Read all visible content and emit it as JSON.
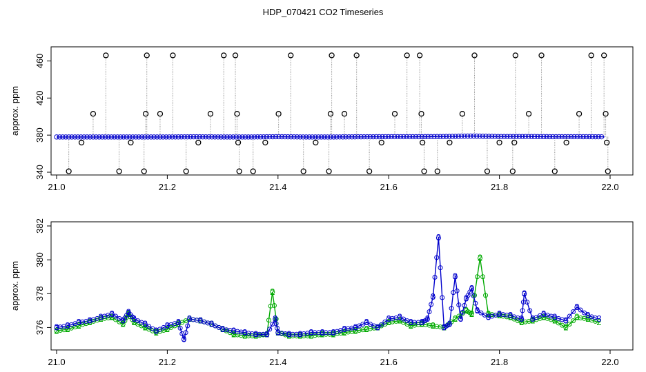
{
  "figure": {
    "title": "HDP_070421  CO2 Timeseries"
  },
  "chart_data": [
    {
      "type": "scatter",
      "ylabel": "approx. ppm",
      "xlim": [
        21.0,
        22.0
      ],
      "ylim": [
        340,
        470
      ],
      "x_ticks": [
        21.0,
        21.2,
        21.4,
        21.6,
        21.8,
        22.0
      ],
      "x_tick_labels": [
        "21.0",
        "21.2",
        "21.4",
        "21.6",
        "21.8",
        "22.0"
      ],
      "y_ticks": [
        340,
        380,
        420,
        460
      ],
      "y_tick_labels": [
        "340",
        "380",
        "420",
        "460"
      ],
      "grid": false,
      "baseline": [
        [
          21.0,
          378
        ],
        [
          21.05,
          378
        ],
        [
          21.1,
          378
        ],
        [
          21.15,
          378
        ],
        [
          21.2,
          378
        ],
        [
          21.25,
          378.2
        ],
        [
          21.3,
          378
        ],
        [
          21.35,
          378
        ],
        [
          21.4,
          378.3
        ],
        [
          21.45,
          378
        ],
        [
          21.5,
          378
        ],
        [
          21.55,
          378.2
        ],
        [
          21.6,
          378.3
        ],
        [
          21.65,
          378.3
        ],
        [
          21.7,
          378.5
        ],
        [
          21.75,
          379
        ],
        [
          21.8,
          378.5
        ],
        [
          21.85,
          378.5
        ],
        [
          21.9,
          378.3
        ],
        [
          21.95,
          378.3
        ],
        [
          21.99,
          378.2
        ]
      ],
      "spikes": [
        {
          "x": 21.022,
          "y": 341
        },
        {
          "x": 21.045,
          "y": 372
        },
        {
          "x": 21.066,
          "y": 403
        },
        {
          "x": 21.089,
          "y": 466
        },
        {
          "x": 21.113,
          "y": 341
        },
        {
          "x": 21.134,
          "y": 372
        },
        {
          "x": 21.158,
          "y": 341
        },
        {
          "x": 21.161,
          "y": 403
        },
        {
          "x": 21.163,
          "y": 466
        },
        {
          "x": 21.187,
          "y": 403
        },
        {
          "x": 21.21,
          "y": 466
        },
        {
          "x": 21.234,
          "y": 341
        },
        {
          "x": 21.256,
          "y": 372
        },
        {
          "x": 21.278,
          "y": 403
        },
        {
          "x": 21.302,
          "y": 466
        },
        {
          "x": 21.323,
          "y": 466
        },
        {
          "x": 21.326,
          "y": 403
        },
        {
          "x": 21.328,
          "y": 372
        },
        {
          "x": 21.33,
          "y": 341
        },
        {
          "x": 21.355,
          "y": 341
        },
        {
          "x": 21.377,
          "y": 372
        },
        {
          "x": 21.401,
          "y": 403
        },
        {
          "x": 21.423,
          "y": 466
        },
        {
          "x": 21.446,
          "y": 341
        },
        {
          "x": 21.468,
          "y": 372
        },
        {
          "x": 21.492,
          "y": 341
        },
        {
          "x": 21.495,
          "y": 403
        },
        {
          "x": 21.497,
          "y": 466
        },
        {
          "x": 21.52,
          "y": 403
        },
        {
          "x": 21.542,
          "y": 466
        },
        {
          "x": 21.565,
          "y": 341
        },
        {
          "x": 21.587,
          "y": 372
        },
        {
          "x": 21.611,
          "y": 403
        },
        {
          "x": 21.633,
          "y": 466
        },
        {
          "x": 21.656,
          "y": 466
        },
        {
          "x": 21.659,
          "y": 403
        },
        {
          "x": 21.661,
          "y": 372
        },
        {
          "x": 21.664,
          "y": 341
        },
        {
          "x": 21.688,
          "y": 341
        },
        {
          "x": 21.71,
          "y": 372
        },
        {
          "x": 21.733,
          "y": 403
        },
        {
          "x": 21.755,
          "y": 466
        },
        {
          "x": 21.778,
          "y": 341
        },
        {
          "x": 21.8,
          "y": 372
        },
        {
          "x": 21.824,
          "y": 341
        },
        {
          "x": 21.827,
          "y": 372
        },
        {
          "x": 21.829,
          "y": 466
        },
        {
          "x": 21.853,
          "y": 403
        },
        {
          "x": 21.876,
          "y": 466
        },
        {
          "x": 21.9,
          "y": 341
        },
        {
          "x": 21.921,
          "y": 372
        },
        {
          "x": 21.944,
          "y": 403
        },
        {
          "x": 21.966,
          "y": 466
        },
        {
          "x": 21.989,
          "y": 466
        },
        {
          "x": 21.992,
          "y": 403
        },
        {
          "x": 21.994,
          "y": 372
        },
        {
          "x": 21.996,
          "y": 341
        }
      ],
      "colors": {
        "spike_marker": "#000000",
        "baseline_marker": "#0000cc",
        "spike_line": "#888888",
        "accent": "#00bcd4"
      }
    },
    {
      "type": "line",
      "ylabel": "approx. ppm",
      "xlim": [
        21.0,
        22.0
      ],
      "ylim": [
        375,
        382
      ],
      "x_ticks": [
        21.0,
        21.2,
        21.4,
        21.6,
        21.8,
        22.0
      ],
      "x_tick_labels": [
        "21.0",
        "21.2",
        "21.4",
        "21.6",
        "21.8",
        "22.0"
      ],
      "y_ticks": [
        376,
        378,
        380,
        382
      ],
      "y_tick_labels": [
        "376",
        "378",
        "380",
        "382"
      ],
      "grid": false,
      "series": [
        {
          "marker_label": "2",
          "color": "#00aa00",
          "values": [
            [
              21.0,
              375.8
            ],
            [
              21.02,
              375.9
            ],
            [
              21.04,
              376.1
            ],
            [
              21.06,
              376.3
            ],
            [
              21.08,
              376.5
            ],
            [
              21.1,
              376.6
            ],
            [
              21.12,
              376.2
            ],
            [
              21.13,
              376.8
            ],
            [
              21.14,
              376.3
            ],
            [
              21.16,
              376.0
            ],
            [
              21.18,
              375.7
            ],
            [
              21.2,
              375.9
            ],
            [
              21.22,
              376.2
            ],
            [
              21.24,
              376.5
            ],
            [
              21.26,
              376.4
            ],
            [
              21.28,
              376.2
            ],
            [
              21.3,
              375.9
            ],
            [
              21.32,
              375.6
            ],
            [
              21.34,
              375.5
            ],
            [
              21.36,
              375.5
            ],
            [
              21.38,
              375.6
            ],
            [
              21.39,
              378.1
            ],
            [
              21.4,
              375.7
            ],
            [
              21.42,
              375.5
            ],
            [
              21.44,
              375.5
            ],
            [
              21.46,
              375.5
            ],
            [
              21.48,
              375.6
            ],
            [
              21.5,
              375.6
            ],
            [
              21.52,
              375.7
            ],
            [
              21.54,
              375.8
            ],
            [
              21.56,
              375.9
            ],
            [
              21.58,
              376.0
            ],
            [
              21.6,
              376.3
            ],
            [
              21.62,
              376.4
            ],
            [
              21.64,
              376.1
            ],
            [
              21.66,
              376.2
            ],
            [
              21.68,
              376.1
            ],
            [
              21.7,
              376.0
            ],
            [
              21.72,
              376.5
            ],
            [
              21.74,
              377.0
            ],
            [
              21.75,
              376.8
            ],
            [
              21.765,
              380.1
            ],
            [
              21.78,
              376.8
            ],
            [
              21.8,
              376.7
            ],
            [
              21.82,
              376.6
            ],
            [
              21.84,
              376.3
            ],
            [
              21.86,
              376.4
            ],
            [
              21.88,
              376.6
            ],
            [
              21.9,
              376.4
            ],
            [
              21.92,
              376.0
            ],
            [
              21.94,
              376.6
            ],
            [
              21.96,
              376.5
            ],
            [
              21.98,
              376.3
            ]
          ]
        },
        {
          "marker_label": "3",
          "color": "#0000cc",
          "values": [
            [
              21.0,
              376.0
            ],
            [
              21.02,
              376.1
            ],
            [
              21.04,
              376.3
            ],
            [
              21.06,
              376.4
            ],
            [
              21.08,
              376.6
            ],
            [
              21.1,
              376.8
            ],
            [
              21.12,
              376.4
            ],
            [
              21.13,
              376.9
            ],
            [
              21.14,
              376.5
            ],
            [
              21.16,
              376.2
            ],
            [
              21.18,
              375.8
            ],
            [
              21.2,
              376.1
            ],
            [
              21.22,
              376.3
            ],
            [
              21.23,
              375.3
            ],
            [
              21.24,
              376.5
            ],
            [
              21.26,
              376.4
            ],
            [
              21.28,
              376.2
            ],
            [
              21.3,
              375.9
            ],
            [
              21.32,
              375.8
            ],
            [
              21.34,
              375.7
            ],
            [
              21.36,
              375.6
            ],
            [
              21.38,
              375.6
            ],
            [
              21.395,
              376.5
            ],
            [
              21.4,
              375.7
            ],
            [
              21.42,
              375.6
            ],
            [
              21.44,
              375.6
            ],
            [
              21.46,
              375.7
            ],
            [
              21.48,
              375.7
            ],
            [
              21.5,
              375.7
            ],
            [
              21.52,
              375.9
            ],
            [
              21.54,
              376.0
            ],
            [
              21.56,
              376.3
            ],
            [
              21.58,
              376.0
            ],
            [
              21.6,
              376.5
            ],
            [
              21.62,
              376.6
            ],
            [
              21.64,
              376.3
            ],
            [
              21.66,
              376.3
            ],
            [
              21.67,
              376.5
            ],
            [
              21.68,
              377.8
            ],
            [
              21.69,
              381.3
            ],
            [
              21.7,
              376.0
            ],
            [
              21.71,
              376.2
            ],
            [
              21.72,
              379.0
            ],
            [
              21.73,
              376.5
            ],
            [
              21.74,
              377.7
            ],
            [
              21.75,
              378.3
            ],
            [
              21.76,
              377.0
            ],
            [
              21.78,
              376.6
            ],
            [
              21.8,
              376.8
            ],
            [
              21.82,
              376.7
            ],
            [
              21.84,
              376.5
            ],
            [
              21.845,
              378.0
            ],
            [
              21.86,
              376.5
            ],
            [
              21.88,
              376.8
            ],
            [
              21.9,
              376.6
            ],
            [
              21.92,
              376.4
            ],
            [
              21.94,
              377.2
            ],
            [
              21.96,
              376.7
            ],
            [
              21.98,
              376.5
            ]
          ]
        }
      ],
      "colors": {
        "series_2": "#00aa00",
        "series_3": "#0000cc"
      }
    }
  ]
}
